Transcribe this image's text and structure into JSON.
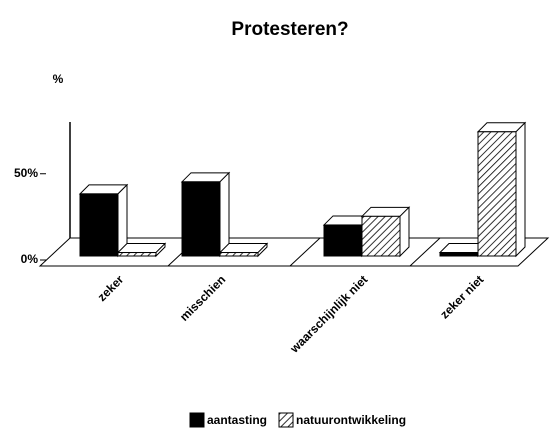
{
  "chart_data": {
    "type": "bar3d",
    "title": "Protesteren?",
    "ylabel": "%",
    "categories": [
      "zeker",
      "misschien",
      "waarschijnlijk niet",
      "zeker niet"
    ],
    "series": [
      {
        "name": "aantasting",
        "color": "#000000",
        "hatch": false,
        "values": [
          36,
          43,
          18,
          2
        ]
      },
      {
        "name": "natuurontwikkeling",
        "color": "#ffffff",
        "hatch": true,
        "values": [
          2,
          2,
          23,
          72
        ]
      }
    ],
    "ylim": [
      0,
      80
    ],
    "yticks": [
      {
        "value": 0,
        "label": "0%"
      },
      {
        "value": 50,
        "label": "50%"
      }
    ]
  }
}
